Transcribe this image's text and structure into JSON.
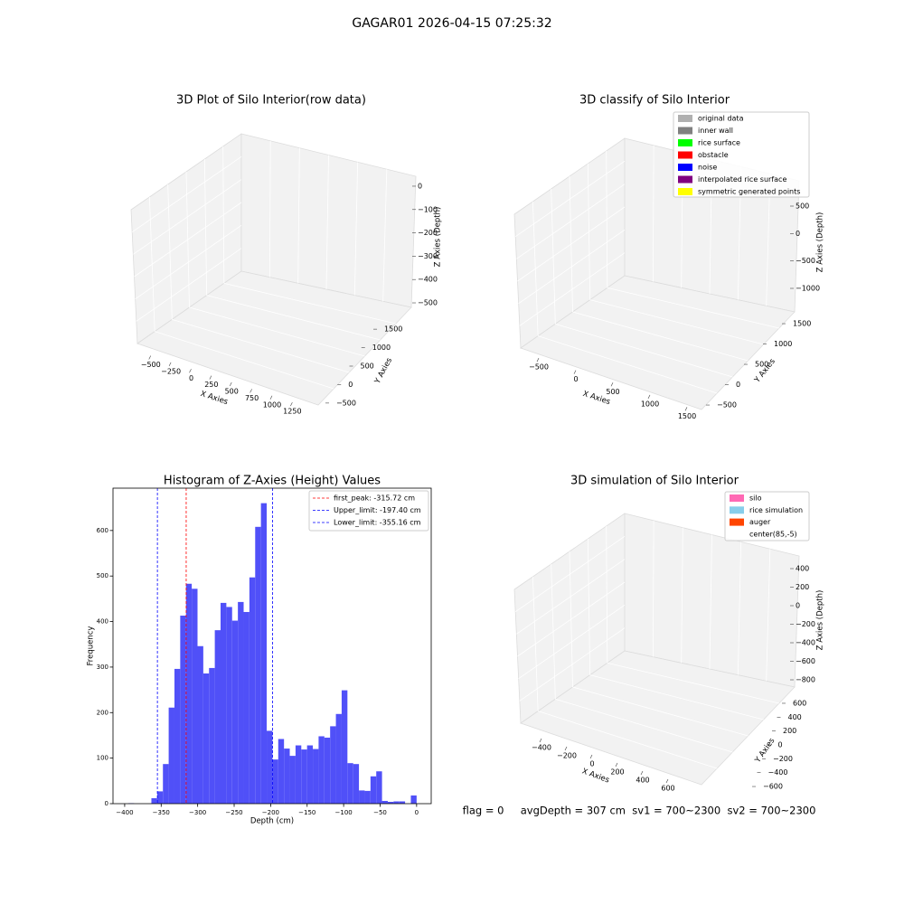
{
  "title": "GAGAR01 2026-04-15 07:25:32",
  "chart_data": [
    {
      "type": "scatter3d",
      "title": "3D Plot of Silo Interior(row data)",
      "xlabel": "X Axies",
      "ylabel": "Y Axies",
      "zlabel": "Z Axies (Depth)",
      "xlim": [
        -620,
        1380
      ],
      "xticks": [
        {
          "value": -500,
          "label": "−500"
        },
        {
          "value": -250,
          "label": "−250"
        },
        0,
        250,
        500,
        750,
        1000,
        1250
      ],
      "ylim": [
        -650,
        1650
      ],
      "yticks": [
        {
          "value": -500,
          "label": "−500"
        },
        0,
        500,
        1000,
        1500
      ],
      "zlim": [
        -560,
        20
      ],
      "zticks": [
        0,
        {
          "value": -100,
          "label": "−100"
        },
        {
          "value": -200,
          "label": "−200"
        },
        {
          "value": -300,
          "label": "−300"
        },
        {
          "value": -400,
          "label": "−400"
        },
        {
          "value": -500,
          "label": "−500"
        }
      ]
    },
    {
      "type": "scatter3d",
      "title": "3D classify of Silo Interior",
      "xlabel": "X Axies",
      "ylabel": "Y Axies",
      "zlabel": "Z Axies (Depth)",
      "xlim": [
        -650,
        1650
      ],
      "xticks": [
        {
          "value": -500,
          "label": "−500"
        },
        0,
        500,
        1000,
        1500
      ],
      "ylim": [
        -650,
        1650
      ],
      "yticks": [
        {
          "value": -500,
          "label": "−500"
        },
        0,
        500,
        1000,
        1500
      ],
      "zlim": [
        -1150,
        650
      ],
      "zticks": [
        500,
        0,
        {
          "value": -500,
          "label": "−500"
        },
        {
          "value": -1000,
          "label": "−1000"
        }
      ],
      "legend": [
        {
          "name": "original data",
          "color": "#b0b0b0"
        },
        {
          "name": "inner wall",
          "color": "#808080"
        },
        {
          "name": "rice surface",
          "color": "#00ff00"
        },
        {
          "name": "obstacle",
          "color": "#ff0000"
        },
        {
          "name": "noise",
          "color": "#0000ff"
        },
        {
          "name": "interpolated rice surface",
          "color": "#800080"
        },
        {
          "name": "symmetric generated points",
          "color": "#ffff00"
        }
      ]
    },
    {
      "type": "histogram",
      "title": "Histogram of Z-Axies (Height) Values",
      "xlabel": "Depth (cm)",
      "ylabel": "Frequency",
      "color": "#5050f8",
      "bins": [
        -395,
        -387.1,
        -379.2,
        -371.3,
        -363.4,
        -355.5,
        -347.6,
        -339.7,
        -331.8,
        -323.9,
        -316,
        -308.1,
        -300.2,
        -292.3,
        -284.4,
        -276.5,
        -268.6,
        -260.7,
        -252.8,
        -244.9,
        -237,
        -229.1,
        -221.2,
        -213.3,
        -205.4,
        -197.5,
        -189.6,
        -181.7,
        -173.8,
        -165.9,
        -158,
        -150.1,
        -142.2,
        -134.3,
        -126.4,
        -118.5,
        -110.6,
        -102.7,
        -94.8,
        -86.9,
        -79,
        -71.1,
        -63.2,
        -55.3,
        -47.4,
        -39.5,
        -31.6,
        -23.7,
        -15.8,
        -7.9,
        0
      ],
      "values": [
        1,
        0,
        0,
        0,
        12,
        27,
        87,
        211,
        296,
        413,
        483,
        472,
        346,
        286,
        298,
        381,
        441,
        432,
        402,
        443,
        421,
        497,
        608,
        660,
        160,
        97,
        142,
        121,
        105,
        128,
        119,
        128,
        120,
        148,
        145,
        170,
        197,
        249,
        89,
        87,
        29,
        28,
        60,
        71,
        6,
        4,
        5,
        5,
        0,
        18
      ],
      "xlim": [
        -416,
        20
      ],
      "xticks": [
        {
          "value": -400,
          "label": "−400"
        },
        {
          "value": -350,
          "label": "−350"
        },
        {
          "value": -300,
          "label": "−300"
        },
        {
          "value": -250,
          "label": "−250"
        },
        {
          "value": -200,
          "label": "−200"
        },
        {
          "value": -150,
          "label": "−150"
        },
        {
          "value": -100,
          "label": "−100"
        },
        {
          "value": -50,
          "label": "−50"
        },
        0
      ],
      "ylim": [
        0,
        693
      ],
      "yticks": [
        0,
        100,
        200,
        300,
        400,
        500,
        600
      ],
      "lines": [
        {
          "value": -315.72,
          "label": "first_peak: -315.72 cm",
          "color": "#ff0000"
        },
        {
          "value": -197.4,
          "label": "Upper_limit: -197.40 cm",
          "color": "#0000ff"
        },
        {
          "value": -355.16,
          "label": "Lower_limit: -355.16 cm",
          "color": "#0000ff"
        }
      ]
    },
    {
      "type": "scatter3d",
      "title": "3D simulation of Silo Interior",
      "xlabel": "X Axies",
      "ylabel": "Y Axies",
      "zlabel": "Z Axies (Depth)",
      "xlim": [
        -500,
        700
      ],
      "xticks": [
        {
          "value": -400,
          "label": "−400"
        },
        {
          "value": -200,
          "label": "−200"
        },
        0,
        200,
        400,
        600
      ],
      "ylim": [
        -700,
        700
      ],
      "yticks": [
        {
          "value": -600,
          "label": "−600"
        },
        {
          "value": -400,
          "label": "−400"
        },
        {
          "value": -200,
          "label": "−200"
        },
        0,
        200,
        400,
        600
      ],
      "zlim": [
        -900,
        500
      ],
      "zticks": [
        400,
        200,
        0,
        {
          "value": -200,
          "label": "−200"
        },
        {
          "value": -400,
          "label": "−400"
        },
        {
          "value": -600,
          "label": "−600"
        },
        {
          "value": -800,
          "label": "−800"
        }
      ],
      "legend": [
        {
          "name": "silo",
          "color": "#ff69b4"
        },
        {
          "name": "rice simulation",
          "color": "#87ceeb"
        },
        {
          "name": "auger",
          "color": "#ff4500"
        },
        {
          "name": "center(85,-5)",
          "color": null
        }
      ],
      "annotation": "flag = 0     avgDepth = 307 cm  sv1 = 700~2300  sv2 = 700~2300"
    }
  ]
}
